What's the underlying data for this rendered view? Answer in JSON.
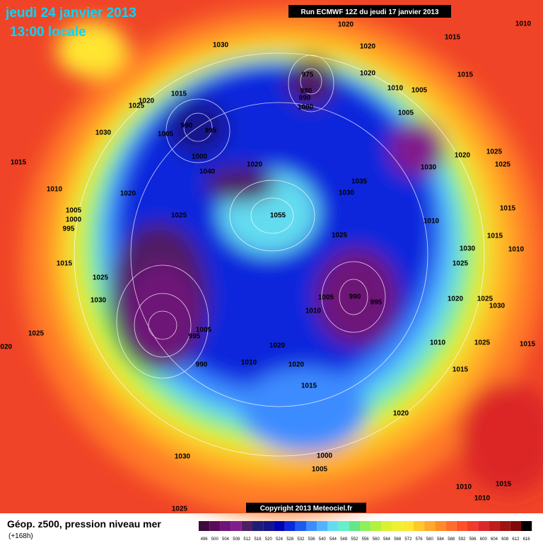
{
  "header": {
    "date": "jeudi 24 janvier 2013",
    "time": "13:00 locale",
    "run": "Run ECMWF 12Z du jeudi 17 janvier 2013"
  },
  "footer": {
    "title": "Géop. z500, pression niveau mer",
    "lead": "(+168h)",
    "copyright": "Copyright 2013 Meteociel.fr"
  },
  "legend": {
    "values": [
      496,
      500,
      504,
      508,
      512,
      516,
      520,
      524,
      528,
      532,
      536,
      540,
      544,
      548,
      552,
      556,
      560,
      564,
      568,
      572,
      576,
      580,
      584,
      588,
      592,
      596,
      600,
      604,
      608,
      612,
      616
    ],
    "colors": [
      "#3c0a3c",
      "#5a0a5a",
      "#6e1478",
      "#821e8c",
      "#501e64",
      "#1e1e78",
      "#14148c",
      "#0000b4",
      "#0a28dc",
      "#1e5af0",
      "#3c8cff",
      "#50b4ff",
      "#64dcf0",
      "#64f0c8",
      "#64e68c",
      "#8cf05a",
      "#b4f03c",
      "#dcf032",
      "#f0f032",
      "#ffe632",
      "#ffc828",
      "#ffaa28",
      "#ff8c28",
      "#ff6e28",
      "#ff5028",
      "#f03c28",
      "#dc2828",
      "#be1e1e",
      "#a01414",
      "#820a0a",
      "#000000"
    ]
  },
  "pressure_labels": [
    "1030",
    "1020",
    "1020",
    "1010",
    "1015",
    "1015",
    "1020",
    "1010",
    "1005",
    "1005",
    "1015",
    "1025",
    "1020",
    "990",
    "995",
    "1005",
    "1030",
    "1015",
    "1000",
    "1040",
    "1020",
    "1010",
    "1020",
    "1005",
    "1000",
    "995",
    "1025",
    "1055",
    "975",
    "980",
    "990",
    "1000",
    "1030",
    "1020",
    "1025",
    "1025",
    "1035",
    "1030",
    "1025",
    "1015",
    "1010",
    "1030",
    "1025",
    "1015",
    "1010",
    "1015",
    "1025",
    "1030",
    "990",
    "995",
    "1005",
    "1010",
    "1020",
    "1025",
    "1030",
    "1025",
    "1020",
    "1005",
    "995",
    "990",
    "1010",
    "1020",
    "1020",
    "1010",
    "1025",
    "1015",
    "1015",
    "1015",
    "1020",
    "1030",
    "1000",
    "1005",
    "1010",
    "1015",
    "1010",
    "1025"
  ]
}
